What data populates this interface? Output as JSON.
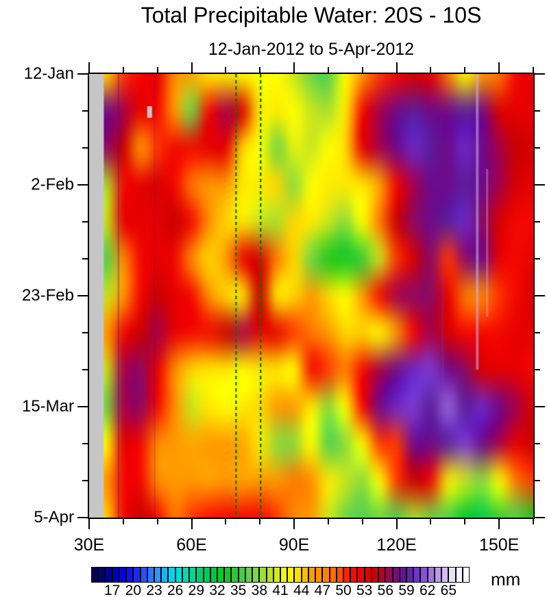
{
  "title": "Total Precipitable Water: 20S - 10S",
  "subtitle": "12-Jan-2012 to 5-Apr-2012",
  "chart_data": {
    "type": "heatmap",
    "description": "Hovmoller diagram of total precipitable water (mm) averaged 20S-10S, longitude vs time",
    "x_axis": {
      "range_lon_e": [
        30,
        160
      ],
      "major_ticks": [
        {
          "lon": 30,
          "label": "30E"
        },
        {
          "lon": 60,
          "label": "60E"
        },
        {
          "lon": 90,
          "label": "90E"
        },
        {
          "lon": 120,
          "label": "120E"
        },
        {
          "lon": 150,
          "label": "150E"
        }
      ],
      "minor_tick_lons": [
        40,
        50,
        70,
        80,
        100,
        110,
        130,
        140,
        160
      ]
    },
    "y_axis": {
      "range_days_from_top": [
        0,
        84
      ],
      "major_ticks": [
        {
          "day": 0,
          "label": "12-Jan"
        },
        {
          "day": 21,
          "label": "2-Feb"
        },
        {
          "day": 42,
          "label": "23-Feb"
        },
        {
          "day": 63,
          "label": "15-Mar"
        },
        {
          "day": 84,
          "label": "5-Apr"
        }
      ],
      "minor_tick_days": [
        7,
        14,
        28,
        35,
        49,
        56,
        70,
        77
      ]
    },
    "grid": {
      "lons_e": [
        30,
        35,
        40,
        45,
        50,
        55,
        60,
        65,
        70,
        75,
        80,
        85,
        90,
        95,
        100,
        105,
        110,
        115,
        120,
        125,
        130,
        135,
        140,
        145,
        150,
        155,
        160
      ],
      "days_from_12jan": [
        0,
        7,
        14,
        21,
        28,
        35,
        42,
        49,
        56,
        63,
        70,
        77,
        84
      ],
      "row_dates": [
        "12-Jan",
        "19-Jan",
        "26-Jan",
        "2-Feb",
        "9-Feb",
        "16-Feb",
        "23-Feb",
        "1-Mar",
        "8-Mar",
        "15-Mar",
        "22-Mar",
        "29-Mar",
        "5-Apr"
      ],
      "values_mm": [
        [
          44,
          44,
          50,
          52,
          53,
          47,
          45,
          43,
          43,
          42,
          42,
          42,
          40,
          37,
          36,
          42,
          46,
          50,
          52,
          54,
          53,
          48,
          42,
          46,
          48,
          52,
          53
        ],
        [
          58,
          58,
          56,
          53,
          52,
          46,
          37,
          52,
          56,
          54,
          43,
          43,
          42,
          40,
          39,
          43,
          52,
          56,
          58,
          59,
          58,
          58,
          59,
          58,
          54,
          53,
          53
        ],
        [
          57,
          57,
          55,
          46,
          50,
          52,
          52,
          53,
          53,
          44,
          42,
          37,
          41,
          40,
          42,
          44,
          53,
          56,
          58,
          60,
          59,
          58,
          60,
          58,
          56,
          55,
          54
        ],
        [
          39,
          39,
          52,
          53,
          54,
          52,
          48,
          46,
          46,
          43,
          43,
          44,
          38,
          42,
          43,
          43,
          43,
          45,
          52,
          56,
          58,
          58,
          59,
          58,
          56,
          54,
          53
        ],
        [
          40,
          40,
          53,
          53,
          53,
          55,
          52,
          47,
          44,
          43,
          40,
          39,
          44,
          43,
          40,
          38,
          42,
          48,
          55,
          57,
          58,
          59,
          60,
          57,
          54,
          52,
          52
        ],
        [
          36,
          36,
          47,
          52,
          53,
          52,
          47,
          44,
          46,
          53,
          54,
          48,
          44,
          37,
          34,
          33,
          35,
          40,
          50,
          54,
          57,
          50,
          57,
          58,
          53,
          52,
          53
        ],
        [
          40,
          40,
          46,
          52,
          55,
          53,
          52,
          47,
          44,
          43,
          55,
          43,
          44,
          46,
          44,
          42,
          46,
          52,
          56,
          57,
          57,
          53,
          48,
          47,
          50,
          52,
          54
        ],
        [
          46,
          46,
          52,
          55,
          56,
          53,
          52,
          52,
          55,
          56,
          53,
          53,
          50,
          48,
          46,
          44,
          44,
          42,
          46,
          52,
          56,
          54,
          52,
          52,
          52,
          53,
          53
        ],
        [
          40,
          40,
          56,
          57,
          53,
          47,
          44,
          43,
          43,
          42,
          43,
          43,
          42,
          52,
          50,
          48,
          52,
          56,
          58,
          60,
          61,
          58,
          57,
          54,
          53,
          53,
          52
        ],
        [
          37,
          37,
          56,
          57,
          52,
          47,
          40,
          43,
          42,
          43,
          44,
          46,
          46,
          43,
          38,
          42,
          52,
          58,
          60,
          61,
          59,
          62,
          59,
          60,
          58,
          56,
          54
        ],
        [
          42,
          42,
          53,
          52,
          47,
          46,
          45,
          46,
          46,
          45,
          43,
          38,
          38,
          42,
          36,
          38,
          42,
          50,
          50,
          58,
          58,
          59,
          61,
          58,
          56,
          53,
          55
        ],
        [
          46,
          46,
          52,
          52,
          47,
          46,
          46,
          45,
          46,
          45,
          46,
          46,
          48,
          47,
          43,
          40,
          38,
          42,
          50,
          55,
          52,
          43,
          40,
          38,
          42,
          48,
          50
        ],
        [
          44,
          44,
          52,
          55,
          52,
          48,
          50,
          51,
          52,
          52,
          52,
          50,
          47,
          46,
          40,
          37,
          36,
          37,
          36,
          39,
          37,
          36,
          32,
          31,
          35,
          36,
          34
        ]
      ]
    },
    "colormap_stops": [
      [
        14,
        "#000046"
      ],
      [
        15,
        "#000064"
      ],
      [
        16,
        "#000082"
      ],
      [
        18,
        "#0000cd"
      ],
      [
        20,
        "#1414ff"
      ],
      [
        22,
        "#2a6aff"
      ],
      [
        24,
        "#30a0ff"
      ],
      [
        25,
        "#00c8ff"
      ],
      [
        26,
        "#00e1e1"
      ],
      [
        28,
        "#00d9a6"
      ],
      [
        30,
        "#00cc66"
      ],
      [
        32,
        "#00c832"
      ],
      [
        34,
        "#1ec81e"
      ],
      [
        36,
        "#50d050"
      ],
      [
        38,
        "#8cdc3c"
      ],
      [
        40,
        "#c8e61e"
      ],
      [
        42,
        "#ffff00"
      ],
      [
        44,
        "#ffd700"
      ],
      [
        45,
        "#ffa500"
      ],
      [
        47,
        "#ff8c00"
      ],
      [
        49,
        "#ff6400"
      ],
      [
        50,
        "#ff3700"
      ],
      [
        51,
        "#ff0f00"
      ],
      [
        53,
        "#e60000"
      ],
      [
        55,
        "#c80000"
      ],
      [
        56,
        "#a4004b"
      ],
      [
        57,
        "#8b0a64"
      ],
      [
        58,
        "#6e0a8b"
      ],
      [
        59,
        "#5a1e9b"
      ],
      [
        60,
        "#6a28c8"
      ],
      [
        61,
        "#7d3cd2"
      ],
      [
        62,
        "#9664dc"
      ],
      [
        63,
        "#af87e6"
      ],
      [
        64,
        "#c8aaf0"
      ],
      [
        65,
        "#e1d2f5"
      ],
      [
        66,
        "#f5eefc"
      ],
      [
        68,
        "#ffffff"
      ]
    ],
    "colorbar": {
      "vmin": 14,
      "vmax": 68,
      "box_step_mm": 1,
      "labels": [
        17,
        20,
        23,
        26,
        29,
        32,
        35,
        38,
        41,
        44,
        47,
        50,
        53,
        56,
        59,
        62,
        65
      ],
      "unit": "mm"
    },
    "overlays": {
      "missing_data_color": "#c6c6c6",
      "missing_band": {
        "lon0": 30,
        "lon1": 34.3
      },
      "missing_patch": {
        "lon0": 47,
        "lon1": 48.4,
        "day0": 6.1,
        "day1": 8.3
      },
      "dashed_lines": {
        "lons": [
          73,
          80.2
        ],
        "color": "#007a00"
      },
      "streaks": [
        {
          "lon": 38.6,
          "day0": 0,
          "day1": 84,
          "color": "rgba(80,16,128,0.35)",
          "width": 2.5
        },
        {
          "lon": 49.2,
          "day0": 0,
          "day1": 84,
          "color": "rgba(80,16,128,0.20)",
          "width": 2
        },
        {
          "lon": 143.6,
          "day0": 0,
          "day1": 56,
          "color": "rgba(205,175,235,0.55)",
          "width": 4
        },
        {
          "lon": 146.5,
          "day0": 18,
          "day1": 46,
          "color": "rgba(205,175,235,0.40)",
          "width": 3
        },
        {
          "lon": 133.5,
          "day0": 38,
          "day1": 60,
          "color": "rgba(120,60,180,0.30)",
          "width": 2.5
        }
      ]
    }
  }
}
